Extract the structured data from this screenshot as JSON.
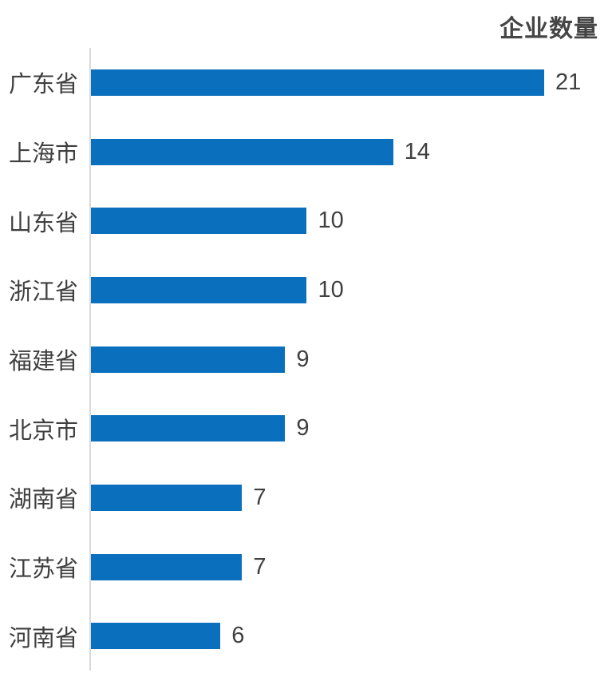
{
  "chart_data": {
    "type": "bar",
    "orientation": "horizontal",
    "title": "企业数量",
    "categories": [
      "广东省",
      "上海市",
      "山东省",
      "浙江省",
      "福建省",
      "北京市",
      "湖南省",
      "江苏省",
      "河南省"
    ],
    "values": [
      21,
      14,
      10,
      10,
      9,
      9,
      7,
      7,
      6
    ],
    "xlabel": "",
    "ylabel": "",
    "xlim": [
      0,
      21
    ],
    "grid": false,
    "legend": false,
    "value_labels_position": "end-of-bar",
    "bar_color": "#0a70bd",
    "axis_color": "#d9d9d9",
    "label_color": "#3f3f3f",
    "value_color": "#404040",
    "title_color": "#454545",
    "background_color": "#ffffff"
  }
}
